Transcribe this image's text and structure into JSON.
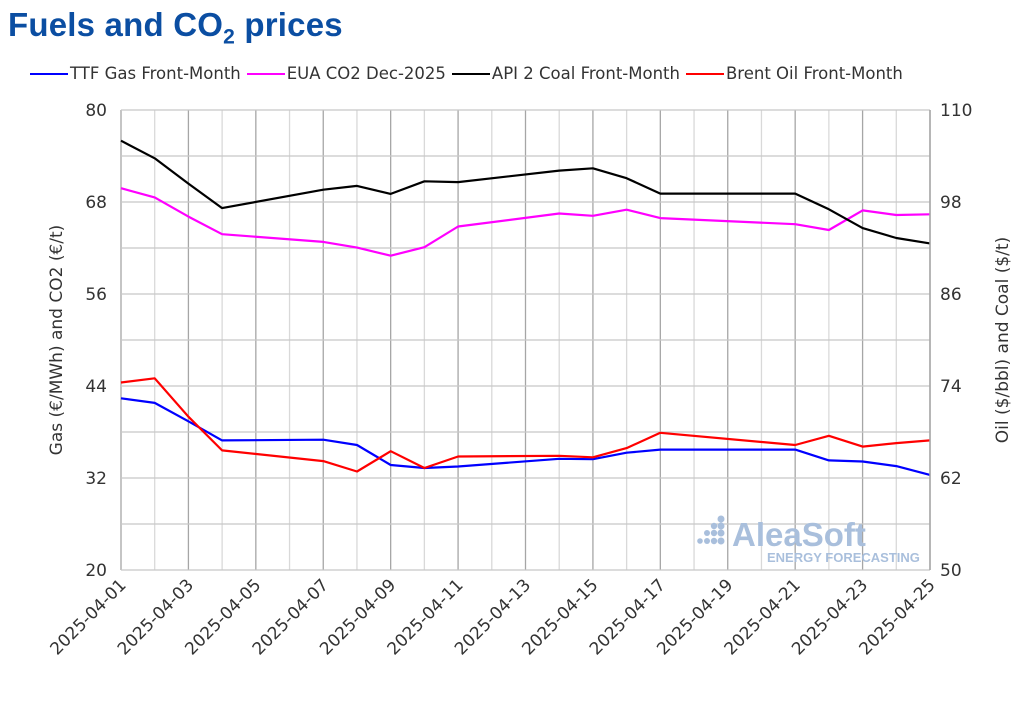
{
  "chart_data": {
    "type": "line",
    "title": "Fuels and CO2 prices",
    "title_main": "Fuels and CO",
    "title_sub": "2",
    "title_tail": " prices",
    "ylabel_left": "Gas (€/MWh) and CO2 (€/t)",
    "ylabel_right": "Oil ($/bbl) and Coal ($/t)",
    "ylim_left": [
      20,
      80
    ],
    "ylim_right": [
      50,
      110
    ],
    "yticks_left": [
      20,
      32,
      44,
      56,
      68,
      80
    ],
    "yticks_right": [
      50,
      62,
      74,
      86,
      98,
      110
    ],
    "xlim": [
      "2025-04-01",
      "2025-04-25"
    ],
    "xticks": [
      "2025-04-01",
      "2025-04-03",
      "2025-04-05",
      "2025-04-07",
      "2025-04-09",
      "2025-04-11",
      "2025-04-13",
      "2025-04-15",
      "2025-04-17",
      "2025-04-19",
      "2025-04-21",
      "2025-04-23",
      "2025-04-25"
    ],
    "grid": true,
    "legend_position": "top",
    "x": [
      "2025-04-01",
      "2025-04-02",
      "2025-04-03",
      "2025-04-04",
      "2025-04-07",
      "2025-04-08",
      "2025-04-09",
      "2025-04-10",
      "2025-04-11",
      "2025-04-14",
      "2025-04-15",
      "2025-04-16",
      "2025-04-17",
      "2025-04-21",
      "2025-04-22",
      "2025-04-23",
      "2025-04-24",
      "2025-04-25"
    ],
    "series": [
      {
        "name": "TTF Gas Front-Month",
        "axis": "left",
        "color": "#0000ff",
        "values": [
          42.4,
          41.8,
          39.4,
          36.9,
          37.0,
          36.3,
          33.7,
          33.3,
          33.5,
          34.5,
          34.45,
          35.3,
          35.7,
          35.7,
          34.3,
          34.15,
          33.55,
          32.4
        ]
      },
      {
        "name": "EUA CO2 Dec-2025",
        "axis": "left",
        "color": "#ff00ff",
        "values": [
          69.8,
          68.6,
          66.1,
          63.8,
          62.8,
          62.05,
          61.0,
          62.1,
          64.8,
          66.5,
          66.2,
          67.0,
          65.9,
          65.1,
          64.35,
          66.9,
          66.3,
          66.4
        ]
      },
      {
        "name": "API 2 Coal Front-Month",
        "axis": "right",
        "color": "#000000",
        "values": [
          106.0,
          103.7,
          100.4,
          97.2,
          99.6,
          100.1,
          99.05,
          100.7,
          100.6,
          102.1,
          102.4,
          101.1,
          99.1,
          99.1,
          97.05,
          94.6,
          93.3,
          92.6
        ]
      },
      {
        "name": "Brent Oil Front-Month",
        "axis": "right",
        "color": "#ff0000",
        "values": [
          74.45,
          75.0,
          70.0,
          65.6,
          64.2,
          62.85,
          65.5,
          63.3,
          64.8,
          64.9,
          64.7,
          65.9,
          67.9,
          66.3,
          67.5,
          66.1,
          66.55,
          66.9
        ]
      }
    ]
  },
  "watermark": {
    "brand": "AleaSoft",
    "tagline": "ENERGY FORECASTING",
    "color": "#a9bfdc"
  }
}
